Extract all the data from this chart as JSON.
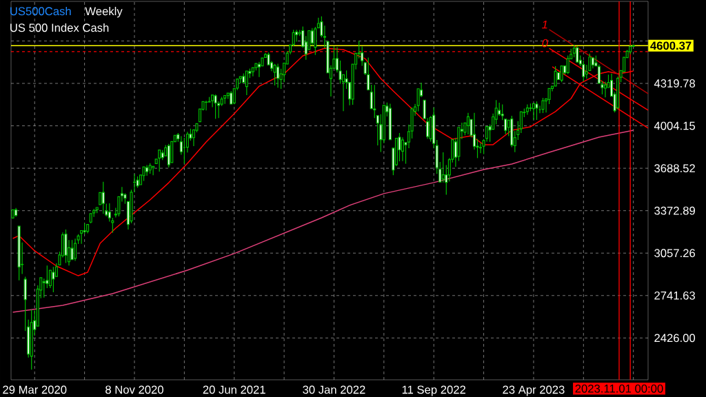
{
  "chart_data": {
    "type": "candlestick",
    "title": "US500Cash",
    "subtitle": "US 500 Index Cash",
    "annotations": [
      "Weekly",
      {
        "text": "1",
        "x": "2023-05-28",
        "y": 4720
      },
      {
        "text": "0",
        "x": "2023-05-28",
        "y": 4581
      }
    ],
    "color": "#00c000",
    "grid": true,
    "xlim": [
      "2020-02-05",
      "2024-01-05"
    ],
    "ylim": [
      2115,
      4930
    ],
    "xticks": [
      {
        "value": "2020-03-29",
        "label": "29 Mar 2020"
      },
      {
        "value": "2020-07-19",
        "label": null
      },
      {
        "value": "2020-11-08",
        "label": "8 Nov 2020"
      },
      {
        "value": "2021-02-28",
        "label": null
      },
      {
        "value": "2021-06-20",
        "label": "20 Jun 2021"
      },
      {
        "value": "2021-10-10",
        "label": null
      },
      {
        "value": "2022-01-30",
        "label": "30 Jan 2022"
      },
      {
        "value": "2022-05-22",
        "label": null
      },
      {
        "value": "2022-09-11",
        "label": "11 Sep 2022"
      },
      {
        "value": "2023-01-01",
        "label": null
      },
      {
        "value": "2023-04-23",
        "label": "23 Apr 2023"
      },
      {
        "value": "2023-08-13",
        "label": null
      },
      {
        "value": "2023-12-03",
        "label": null
      }
    ],
    "yticks": [
      {
        "value": 2426,
        "label": "2426.00"
      },
      2741.63,
      3057.26,
      3372.89,
      3688.52,
      4004.15,
      4319.78,
      {
        "value": 4635.41,
        "label": null
      }
    ],
    "x": [
      "2020-02-09",
      "2020-02-16",
      "2020-02-23",
      "2020-03-01",
      "2020-03-08",
      "2020-03-15",
      "2020-03-22",
      "2020-03-29",
      "2020-04-05",
      "2020-04-12",
      "2020-04-19",
      "2020-04-26",
      "2020-05-03",
      "2020-05-10",
      "2020-05-17",
      "2020-05-24",
      "2020-05-31",
      "2020-06-07",
      "2020-06-14",
      "2020-06-21",
      "2020-06-28",
      "2020-07-05",
      "2020-07-12",
      "2020-07-19",
      "2020-07-26",
      "2020-08-02",
      "2020-08-09",
      "2020-08-16",
      "2020-08-23",
      "2020-08-30",
      "2020-09-06",
      "2020-09-13",
      "2020-09-20",
      "2020-09-27",
      "2020-10-04",
      "2020-10-11",
      "2020-10-18",
      "2020-10-25",
      "2020-11-01",
      "2020-11-08",
      "2020-11-15",
      "2020-11-22",
      "2020-11-29",
      "2020-12-06",
      "2020-12-13",
      "2020-12-20",
      "2020-12-27",
      "2021-01-03",
      "2021-01-10",
      "2021-01-17",
      "2021-01-24",
      "2021-01-31",
      "2021-02-07",
      "2021-02-14",
      "2021-02-21",
      "2021-02-28",
      "2021-03-07",
      "2021-03-14",
      "2021-03-21",
      "2021-03-28",
      "2021-04-04",
      "2021-04-11",
      "2021-04-18",
      "2021-04-25",
      "2021-05-02",
      "2021-05-09",
      "2021-05-16",
      "2021-05-23",
      "2021-05-30",
      "2021-06-06",
      "2021-06-13",
      "2021-06-20",
      "2021-06-27",
      "2021-07-04",
      "2021-07-11",
      "2021-07-18",
      "2021-07-25",
      "2021-08-01",
      "2021-08-08",
      "2021-08-15",
      "2021-08-22",
      "2021-08-29",
      "2021-09-05",
      "2021-09-12",
      "2021-09-19",
      "2021-09-26",
      "2021-10-03",
      "2021-10-10",
      "2021-10-17",
      "2021-10-24",
      "2021-10-31",
      "2021-11-07",
      "2021-11-14",
      "2021-11-21",
      "2021-11-28",
      "2021-12-05",
      "2021-12-12",
      "2021-12-19",
      "2021-12-26",
      "2022-01-02",
      "2022-01-09",
      "2022-01-16",
      "2022-01-23",
      "2022-01-30",
      "2022-02-06",
      "2022-02-13",
      "2022-02-20",
      "2022-02-27",
      "2022-03-06",
      "2022-03-13",
      "2022-03-20",
      "2022-03-27",
      "2022-04-03",
      "2022-04-10",
      "2022-04-17",
      "2022-04-24",
      "2022-05-01",
      "2022-05-08",
      "2022-05-15",
      "2022-05-22",
      "2022-05-29",
      "2022-06-05",
      "2022-06-12",
      "2022-06-19",
      "2022-06-26",
      "2022-07-03",
      "2022-07-10",
      "2022-07-17",
      "2022-07-24",
      "2022-07-31",
      "2022-08-07",
      "2022-08-14",
      "2022-08-21",
      "2022-08-28",
      "2022-09-04",
      "2022-09-11",
      "2022-09-18",
      "2022-09-25",
      "2022-10-02",
      "2022-10-09",
      "2022-10-16",
      "2022-10-23",
      "2022-10-30",
      "2022-11-06",
      "2022-11-13",
      "2022-11-20",
      "2022-11-27",
      "2022-12-04",
      "2022-12-11",
      "2022-12-18",
      "2022-12-25",
      "2023-01-01",
      "2023-01-08",
      "2023-01-15",
      "2023-01-22",
      "2023-01-29",
      "2023-02-05",
      "2023-02-12",
      "2023-02-19",
      "2023-02-26",
      "2023-03-05",
      "2023-03-12",
      "2023-03-19",
      "2023-03-26",
      "2023-04-02",
      "2023-04-09",
      "2023-04-16",
      "2023-04-23",
      "2023-04-30",
      "2023-05-07",
      "2023-05-14",
      "2023-05-21",
      "2023-05-28",
      "2023-06-04",
      "2023-06-11",
      "2023-06-18",
      "2023-06-25",
      "2023-07-02",
      "2023-07-09",
      "2023-07-16",
      "2023-07-23",
      "2023-07-30",
      "2023-08-06",
      "2023-08-13",
      "2023-08-20",
      "2023-08-27",
      "2023-09-03",
      "2023-09-10",
      "2023-09-17",
      "2023-09-24",
      "2023-10-01",
      "2023-10-08",
      "2023-10-15",
      "2023-10-22",
      "2023-10-29",
      "2023-11-05",
      "2023-11-12",
      "2023-11-19",
      "2023-11-26",
      "2023-12-03"
    ],
    "ohlc": [
      [
        3318,
        3385,
        3316,
        3380
      ],
      [
        3380,
        3393,
        3328,
        3338
      ],
      [
        3258,
        3260,
        2855,
        2954
      ],
      [
        2974,
        3137,
        2902,
        2972
      ],
      [
        2863,
        2882,
        2478,
        2711
      ],
      [
        2508,
        2562,
        2280,
        2305
      ],
      [
        2290,
        2637,
        2191,
        2541
      ],
      [
        2555,
        2632,
        2447,
        2489
      ],
      [
        2514,
        2818,
        2514,
        2790
      ],
      [
        2782,
        2880,
        2721,
        2875
      ],
      [
        2845,
        2868,
        2727,
        2837
      ],
      [
        2854,
        2965,
        2797,
        2831
      ],
      [
        2815,
        2934,
        2797,
        2930
      ],
      [
        2915,
        2955,
        2766,
        2864
      ],
      [
        2883,
        2981,
        2883,
        2955
      ],
      [
        2969,
        3068,
        2969,
        3044
      ],
      [
        3038,
        3211,
        3025,
        3194
      ],
      [
        3199,
        3233,
        2984,
        3041
      ],
      [
        2993,
        3155,
        2965,
        3098
      ],
      [
        3094,
        3155,
        3004,
        3009
      ],
      [
        3018,
        3165,
        3000,
        3130
      ],
      [
        3155,
        3198,
        3125,
        3185
      ],
      [
        3205,
        3233,
        3127,
        3225
      ],
      [
        3224,
        3280,
        3200,
        3216
      ],
      [
        3219,
        3272,
        3205,
        3271
      ],
      [
        3288,
        3352,
        3279,
        3351
      ],
      [
        3356,
        3387,
        3327,
        3373
      ],
      [
        3380,
        3400,
        3354,
        3397
      ],
      [
        3418,
        3509,
        3414,
        3508
      ],
      [
        3509,
        3588,
        3349,
        3427
      ],
      [
        3371,
        3425,
        3330,
        3341
      ],
      [
        3363,
        3428,
        3292,
        3319
      ],
      [
        3285,
        3320,
        3209,
        3298
      ],
      [
        3341,
        3394,
        3323,
        3348
      ],
      [
        3350,
        3485,
        3330,
        3477
      ],
      [
        3500,
        3550,
        3441,
        3484
      ],
      [
        3493,
        3502,
        3424,
        3465
      ],
      [
        3441,
        3441,
        3233,
        3270
      ],
      [
        3296,
        3529,
        3279,
        3510
      ],
      [
        3584,
        3646,
        3511,
        3585
      ],
      [
        3600,
        3628,
        3543,
        3558
      ],
      [
        3566,
        3645,
        3560,
        3638
      ],
      [
        3634,
        3701,
        3594,
        3699
      ],
      [
        3694,
        3712,
        3633,
        3663
      ],
      [
        3675,
        3726,
        3648,
        3709
      ],
      [
        3693,
        3711,
        3636,
        3703
      ],
      [
        3723,
        3760,
        3720,
        3756
      ],
      [
        3764,
        3826,
        3663,
        3824
      ],
      [
        3803,
        3824,
        3749,
        3768
      ],
      [
        3781,
        3861,
        3780,
        3841
      ],
      [
        3856,
        3870,
        3694,
        3714
      ],
      [
        3731,
        3889,
        3725,
        3887
      ],
      [
        3886,
        3937,
        3884,
        3934
      ],
      [
        3939,
        3951,
        3885,
        3907
      ],
      [
        3886,
        3928,
        3789,
        3811
      ],
      [
        3842,
        3915,
        3724,
        3842
      ],
      [
        3845,
        3960,
        3806,
        3943
      ],
      [
        3942,
        3983,
        3894,
        3913
      ],
      [
        3916,
        3975,
        3853,
        3974
      ],
      [
        3970,
        4020,
        3956,
        4020
      ],
      [
        4035,
        4130,
        4035,
        4129
      ],
      [
        4127,
        4192,
        4118,
        4185
      ],
      [
        4179,
        4191,
        4118,
        4180
      ],
      [
        4185,
        4219,
        4175,
        4181
      ],
      [
        4191,
        4238,
        4143,
        4233
      ],
      [
        4228,
        4237,
        4056,
        4174
      ],
      [
        4170,
        4186,
        4062,
        4156
      ],
      [
        4165,
        4220,
        4152,
        4204
      ],
      [
        4210,
        4234,
        4167,
        4230
      ],
      [
        4229,
        4249,
        4205,
        4247
      ],
      [
        4248,
        4262,
        4164,
        4166
      ],
      [
        4174,
        4287,
        4165,
        4281
      ],
      [
        4285,
        4355,
        4270,
        4352
      ],
      [
        4356,
        4372,
        4320,
        4370
      ],
      [
        4372,
        4394,
        4321,
        4327
      ],
      [
        4296,
        4415,
        4233,
        4412
      ],
      [
        4409,
        4430,
        4360,
        4395
      ],
      [
        4406,
        4440,
        4372,
        4437
      ],
      [
        4437,
        4468,
        4416,
        4468
      ],
      [
        4462,
        4480,
        4367,
        4442
      ],
      [
        4450,
        4511,
        4442,
        4509
      ],
      [
        4513,
        4545,
        4513,
        4535
      ],
      [
        4535,
        4549,
        4456,
        4458
      ],
      [
        4474,
        4486,
        4411,
        4432
      ],
      [
        4402,
        4465,
        4305,
        4455
      ],
      [
        4442,
        4466,
        4288,
        4357
      ],
      [
        4349,
        4429,
        4279,
        4391
      ],
      [
        4385,
        4476,
        4329,
        4471
      ],
      [
        4464,
        4559,
        4459,
        4545
      ],
      [
        4553,
        4608,
        4537,
        4605
      ],
      [
        4610,
        4718,
        4595,
        4697
      ],
      [
        4702,
        4718,
        4630,
        4682
      ],
      [
        4689,
        4717,
        4672,
        4698
      ],
      [
        4712,
        4743,
        4585,
        4595
      ],
      [
        4628,
        4672,
        4495,
        4538
      ],
      [
        4572,
        4713,
        4572,
        4712
      ],
      [
        4710,
        4731,
        4600,
        4620
      ],
      [
        4588,
        4740,
        4531,
        4726
      ],
      [
        4733,
        4808,
        4733,
        4766
      ],
      [
        4778,
        4819,
        4662,
        4677
      ],
      [
        4669,
        4749,
        4582,
        4663
      ],
      [
        4632,
        4632,
        4395,
        4398
      ],
      [
        4356,
        4454,
        4223,
        4432
      ],
      [
        4432,
        4595,
        4431,
        4501
      ],
      [
        4505,
        4590,
        4401,
        4419
      ],
      [
        4412,
        4490,
        4317,
        4349
      ],
      [
        4332,
        4385,
        4114,
        4385
      ],
      [
        4354,
        4416,
        4279,
        4328
      ],
      [
        4327,
        4327,
        4157,
        4204
      ],
      [
        4202,
        4465,
        4161,
        4463
      ],
      [
        4462,
        4546,
        4424,
        4543
      ],
      [
        4541,
        4637,
        4506,
        4546
      ],
      [
        4547,
        4594,
        4450,
        4488
      ],
      [
        4474,
        4474,
        4381,
        4393
      ],
      [
        4385,
        4512,
        4267,
        4272
      ],
      [
        4255,
        4309,
        4124,
        4132
      ],
      [
        4130,
        4308,
        4062,
        4123
      ],
      [
        4081,
        4081,
        3858,
        4024
      ],
      [
        4013,
        4090,
        3810,
        3901
      ],
      [
        3900,
        4160,
        3875,
        4158
      ],
      [
        4151,
        4177,
        4074,
        4109
      ],
      [
        4135,
        4168,
        3900,
        3901
      ],
      [
        3838,
        3838,
        3637,
        3675
      ],
      [
        3715,
        3914,
        3705,
        3912
      ],
      [
        3920,
        3951,
        3740,
        3825
      ],
      [
        3815,
        3919,
        3742,
        3899
      ],
      [
        3880,
        3880,
        3722,
        3863
      ],
      [
        3883,
        4013,
        3838,
        3962
      ],
      [
        3965,
        4141,
        3910,
        4130
      ],
      [
        4112,
        4167,
        4079,
        4145
      ],
      [
        4155,
        4280,
        4112,
        4280
      ],
      [
        4270,
        4325,
        4218,
        4228
      ],
      [
        4195,
        4203,
        4057,
        4058
      ],
      [
        4035,
        4062,
        3907,
        3924
      ],
      [
        3908,
        4076,
        3887,
        4067
      ],
      [
        4083,
        4140,
        3837,
        3873
      ],
      [
        3858,
        3899,
        3647,
        3693
      ],
      [
        3682,
        3735,
        3584,
        3586
      ],
      [
        3609,
        3807,
        3583,
        3640
      ],
      [
        3640,
        3712,
        3492,
        3583
      ],
      [
        3638,
        3765,
        3591,
        3753
      ],
      [
        3755,
        3905,
        3731,
        3901
      ],
      [
        3885,
        3913,
        3699,
        3771
      ],
      [
        3777,
        3993,
        3743,
        3993
      ],
      [
        3977,
        4028,
        3906,
        3965
      ],
      [
        3956,
        4034,
        3933,
        4026
      ],
      [
        4005,
        4101,
        3940,
        4072
      ],
      [
        4052,
        4052,
        3918,
        3934
      ],
      [
        3940,
        4101,
        3827,
        3852
      ],
      [
        3853,
        3907,
        3764,
        3845
      ],
      [
        3843,
        3878,
        3801,
        3840
      ],
      [
        3853,
        3906,
        3794,
        3895
      ],
      [
        3910,
        4003,
        3887,
        3999
      ],
      [
        3999,
        4015,
        3885,
        3973
      ],
      [
        3978,
        4095,
        3974,
        4071
      ],
      [
        4053,
        4195,
        4015,
        4136
      ],
      [
        4119,
        4176,
        4079,
        4090
      ],
      [
        4091,
        4163,
        4047,
        4079
      ],
      [
        4054,
        4061,
        3943,
        3970
      ],
      [
        3993,
        4048,
        3928,
        4046
      ],
      [
        4055,
        4079,
        3846,
        3862
      ],
      [
        3856,
        3965,
        3808,
        3917
      ],
      [
        3938,
        4039,
        3899,
        3971
      ],
      [
        3982,
        4110,
        3951,
        4109
      ],
      [
        4102,
        4133,
        4069,
        4105
      ],
      [
        4110,
        4164,
        4087,
        4137
      ],
      [
        4137,
        4170,
        4113,
        4134
      ],
      [
        4132,
        4170,
        4049,
        4169
      ],
      [
        4166,
        4186,
        4048,
        4136
      ],
      [
        4124,
        4154,
        4098,
        4124
      ],
      [
        4127,
        4212,
        4099,
        4191
      ],
      [
        4190,
        4212,
        4103,
        4205
      ],
      [
        4200,
        4290,
        4166,
        4282
      ],
      [
        4282,
        4299,
        4261,
        4299
      ],
      [
        4300,
        4448,
        4297,
        4410
      ],
      [
        4400,
        4400,
        4340,
        4348
      ],
      [
        4344,
        4458,
        4329,
        4450
      ],
      [
        4450,
        4456,
        4385,
        4399
      ],
      [
        4400,
        4527,
        4390,
        4505
      ],
      [
        4502,
        4578,
        4501,
        4536
      ],
      [
        4545,
        4607,
        4514,
        4582
      ],
      [
        4585,
        4595,
        4474,
        4478
      ],
      [
        4492,
        4527,
        4448,
        4464
      ],
      [
        4460,
        4490,
        4335,
        4370
      ],
      [
        4389,
        4458,
        4356,
        4406
      ],
      [
        4415,
        4541,
        4413,
        4516
      ],
      [
        4510,
        4516,
        4431,
        4457
      ],
      [
        4473,
        4527,
        4448,
        4450
      ],
      [
        4445,
        4461,
        4316,
        4320
      ],
      [
        4310,
        4338,
        4238,
        4288
      ],
      [
        4284,
        4333,
        4216,
        4309
      ],
      [
        4289,
        4385,
        4283,
        4327
      ],
      [
        4342,
        4393,
        4223,
        4224
      ],
      [
        4239,
        4255,
        4104,
        4117
      ],
      [
        4140,
        4370,
        4127,
        4358
      ],
      [
        4365,
        4418,
        4329,
        4415
      ],
      [
        4406,
        4521,
        4406,
        4514
      ],
      [
        4511,
        4568,
        4510,
        4559
      ],
      [
        4555,
        4607,
        4537,
        4594
      ],
      [
        4594,
        4610,
        4590,
        4600.37
      ]
    ],
    "series": [
      {
        "type": "line",
        "color": "#ff0000",
        "x": [
          "2020-02-09",
          "2020-02-23",
          "2020-03-29",
          "2020-05-17",
          "2020-07-05",
          "2020-07-26",
          "2020-08-23",
          "2020-09-27",
          "2020-11-01",
          "2020-12-13",
          "2021-01-24",
          "2021-03-07",
          "2021-04-18",
          "2021-06-20",
          "2021-08-15",
          "2021-10-10",
          "2021-11-21",
          "2022-01-09",
          "2022-02-20",
          "2022-04-10",
          "2022-05-15",
          "2022-06-12",
          "2022-07-24",
          "2022-08-28",
          "2022-10-23",
          "2022-12-04",
          "2023-01-01",
          "2023-01-22",
          "2023-03-05",
          "2023-04-16",
          "2023-06-11",
          "2023-07-16",
          "2023-08-06",
          "2023-09-17",
          "2023-10-08",
          "2023-10-29",
          "2023-11-19",
          "2023-12-03"
        ],
        "values": [
          3166,
          3187,
          3074,
          2961,
          2889,
          2915,
          3130,
          3243,
          3340,
          3453,
          3581,
          3725,
          3884,
          4094,
          4299,
          4392,
          4525,
          4581,
          4571,
          4504,
          4356,
          4263,
          4130,
          4017,
          3905,
          3930,
          3864,
          3864,
          3971,
          3997,
          4110,
          4207,
          4320,
          4392,
          4407,
          4392,
          4402,
          4412
        ]
      },
      {
        "type": "line",
        "color": "#e0407a",
        "x": [
          "2020-02-09",
          "2020-05-31",
          "2020-09-20",
          "2021-03-07",
          "2021-06-20",
          "2022-01-02",
          "2022-03-06",
          "2022-05-22",
          "2022-09-11",
          "2023-01-01",
          "2023-03-05",
          "2023-05-28",
          "2023-09-17",
          "2023-12-03"
        ],
        "values": [
          2618,
          2669,
          2756,
          2930,
          3054,
          3320,
          3413,
          3500,
          3582,
          3679,
          3720,
          3807,
          3920,
          3971
        ]
      },
      {
        "type": "line",
        "color": "#b00000",
        "x": [
          "2023-05-28",
          "2024-01-05"
        ],
        "values": [
          4720,
          4243
        ]
      },
      {
        "type": "line",
        "color": "#ff0000",
        "x": [
          "2023-05-28",
          "2024-01-05"
        ],
        "values": [
          4581,
          4120
        ]
      },
      {
        "type": "line",
        "color": "#ff0000",
        "x": [
          "2023-06-04",
          "2024-01-05"
        ],
        "values": [
          4443,
          3987
        ]
      }
    ],
    "ref_lines": [
      {
        "axis": "y",
        "value": 4600.37,
        "label": "4600.37",
        "color": "#ffff00"
      },
      {
        "axis": "y",
        "value": 4556,
        "color": "#ff0000",
        "line_style": "dashed"
      },
      {
        "axis": "x",
        "value": "2023-11-01",
        "label": "2023.11.01 00:00",
        "color": "#ff0000"
      },
      {
        "axis": "x",
        "value": "2023-11-26",
        "color": "#ff0000"
      }
    ]
  }
}
